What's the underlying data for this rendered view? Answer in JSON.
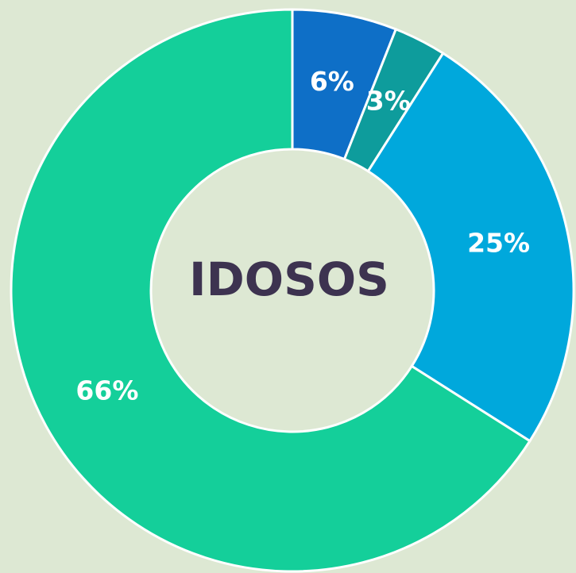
{
  "chart_data": {
    "type": "donut",
    "title": "IDOSOS",
    "values": [
      6,
      3,
      25,
      66
    ],
    "value_labels": [
      "6%",
      "3%",
      "25%",
      "66%"
    ],
    "colors": [
      "#0e6fc7",
      "#0e9c9c",
      "#00a8dc",
      "#14cf9a"
    ]
  }
}
